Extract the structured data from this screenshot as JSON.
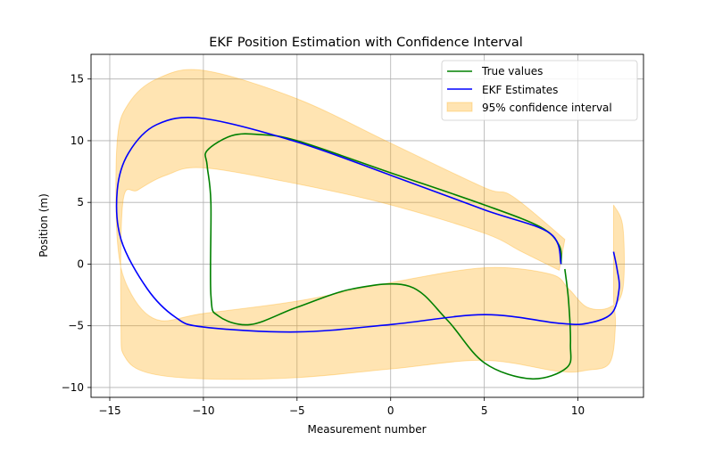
{
  "chart_data": {
    "type": "line",
    "title": "EKF Position Estimation with Confidence Interval",
    "xlabel": "Measurement number",
    "ylabel": "Position (m)",
    "xlim": [
      -16,
      13.5
    ],
    "ylim": [
      -10.8,
      17
    ],
    "x_ticks": [
      -15,
      -10,
      -5,
      0,
      5,
      10
    ],
    "y_ticks": [
      -10,
      -5,
      0,
      5,
      10,
      15
    ],
    "x_tick_labels": [
      "−15",
      "−10",
      "−5",
      "0",
      "5",
      "10"
    ],
    "y_tick_labels": [
      "−10",
      "−5",
      "0",
      "5",
      "10",
      "15"
    ],
    "grid": true,
    "legend_position": "top-right",
    "legend": [
      "True values",
      "EKF Estimates",
      "95% confidence interval"
    ],
    "series": [
      {
        "name": "True values",
        "color": "#008000",
        "x": [
          9.1,
          9.0,
          8.0,
          5.0,
          0.0,
          -5.0,
          -7.0,
          -8.5,
          -9.8,
          -9.8,
          -9.6,
          -9.6,
          -9.2,
          -7.5,
          -5.0,
          -2.0,
          1.0,
          3.0,
          5.0,
          7.5,
          9.4,
          9.6,
          9.5,
          9.3
        ],
        "y": [
          0.0,
          1.5,
          3.0,
          4.8,
          7.4,
          10.0,
          10.5,
          10.4,
          9.2,
          8.0,
          5.0,
          -2.5,
          -4.2,
          -4.9,
          -3.5,
          -2.0,
          -1.8,
          -4.5,
          -8.0,
          -9.3,
          -8.4,
          -6.5,
          -3.0,
          -0.4
        ]
      },
      {
        "name": "EKF Estimates",
        "color": "#0000ff",
        "x": [
          9.1,
          8.5,
          5.0,
          0.0,
          -5.0,
          -10.0,
          -12.5,
          -14.0,
          -14.6,
          -14.4,
          -13.0,
          -11.5,
          -10.0,
          -5.0,
          0.0,
          5.0,
          9.0,
          10.5,
          11.8,
          12.2,
          12.1,
          11.9
        ],
        "y": [
          0.0,
          2.5,
          4.4,
          7.2,
          9.9,
          11.8,
          11.3,
          9.0,
          6.0,
          2.0,
          -2.0,
          -4.3,
          -5.1,
          -5.5,
          -4.9,
          -4.1,
          -4.8,
          -4.8,
          -4.0,
          -2.0,
          -0.5,
          1.0
        ]
      }
    ],
    "confidence_band": {
      "name": "95% confidence interval",
      "color": "#ffa500",
      "opacity": 0.3,
      "upper": {
        "x": [
          9.3,
          6.5,
          5.0,
          0.0,
          -5.0,
          -10.0,
          -12.5,
          -14.0,
          -14.6,
          -14.6,
          -14.0,
          -12.5,
          -10.0,
          -5.0,
          0.0,
          5.0,
          8.5,
          9.5,
          10.5,
          11.7,
          12.4,
          12.4,
          11.9
        ],
        "y": [
          2.0,
          5.5,
          6.2,
          9.8,
          13.4,
          15.7,
          15.0,
          13.0,
          10.0,
          2.0,
          -2.0,
          -4.5,
          -4.0,
          -3.0,
          -1.5,
          -0.3,
          -0.8,
          -2.0,
          -3.5,
          -3.5,
          -2.0,
          3.0,
          4.8
        ]
      },
      "lower": {
        "x": [
          9.0,
          7.0,
          5.0,
          0.0,
          -5.0,
          -10.0,
          -12.0,
          -13.5,
          -14.3,
          -14.4,
          -14.2,
          -13.0,
          -10.0,
          -5.0,
          0.0,
          5.0,
          9.0,
          10.5,
          11.7,
          12.0,
          11.9
        ],
        "y": [
          -0.5,
          1.0,
          2.5,
          4.8,
          6.5,
          7.8,
          7.2,
          6.0,
          5.0,
          -5.0,
          -7.5,
          -8.8,
          -9.3,
          -9.2,
          -8.5,
          -7.8,
          -8.7,
          -8.6,
          -8.0,
          -5.0,
          -3.0
        ]
      }
    }
  }
}
